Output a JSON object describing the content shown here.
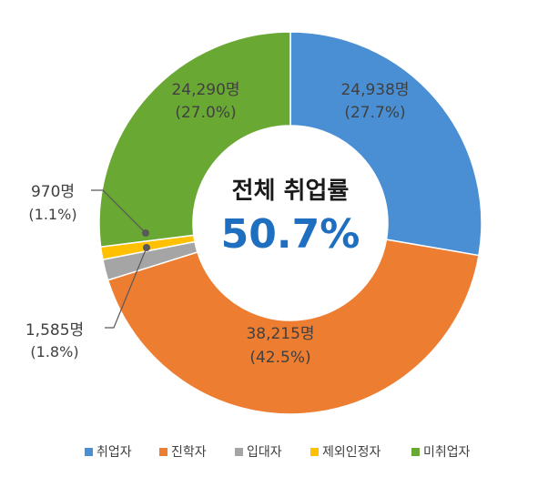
{
  "center": {
    "title": "전체 취업률",
    "value": "50.7%"
  },
  "chart_data": {
    "type": "pie",
    "variant": "donut",
    "categories": [
      "취업자",
      "진학자",
      "입대자",
      "제외인정자",
      "미취업자"
    ],
    "values": [
      24938,
      38215,
      1585,
      970,
      24290
    ],
    "colors": [
      "#4a8fd4",
      "#ed7d31",
      "#a5a5a5",
      "#ffc000",
      "#6aa834"
    ],
    "value_labels": [
      "24,938명",
      "38,215명",
      "1,585명",
      "970명",
      "24,290명"
    ],
    "percent_labels": [
      "(27.7%)",
      "(42.5%)",
      "(1.8%)",
      "(1.1%)",
      "(27.0%)"
    ],
    "legend_placement": "bottom"
  }
}
